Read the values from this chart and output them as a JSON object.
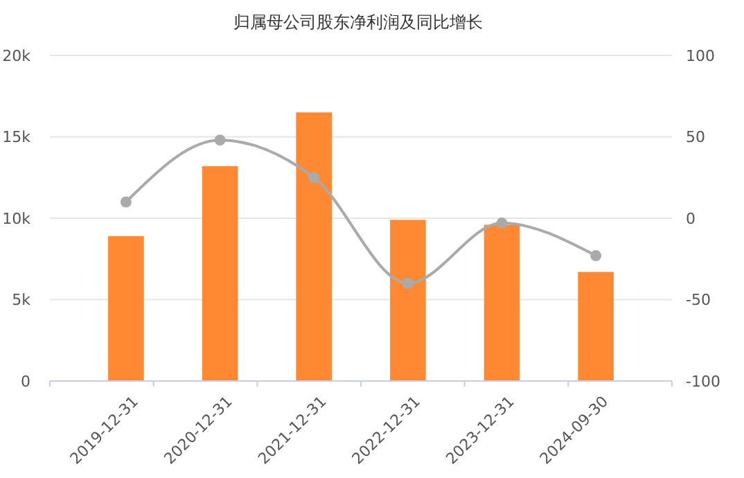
{
  "chart_data": {
    "type": "bar",
    "title": "归属母公司股东净利润及同比增长",
    "categories": [
      "2019-12-31",
      "2020-12-31",
      "2021-12-31",
      "2022-12-31",
      "2023-12-31",
      "2024-09-30"
    ],
    "series": [
      {
        "color": "#ff8833",
        "values": [
          8900,
          13200,
          16500,
          9900,
          9600,
          6700
        ]
      },
      {
        "type": "line",
        "axis": "y2",
        "color": "#aaaaaa",
        "values": [
          10,
          48,
          25,
          -40,
          -3,
          -23
        ]
      }
    ],
    "ylim": [
      0,
      20000
    ],
    "yticks": [
      0,
      {
        "value": 5000,
        "label": "5k"
      },
      {
        "value": 10000,
        "label": "10k"
      },
      {
        "value": 15000,
        "label": "15k"
      },
      {
        "value": 20000,
        "label": "20k"
      }
    ],
    "y2lim": [
      -100,
      100
    ],
    "y2ticks": [
      -100,
      -50,
      0,
      50,
      100
    ],
    "grid": "y",
    "marker": "circle",
    "line_style": "solid"
  }
}
